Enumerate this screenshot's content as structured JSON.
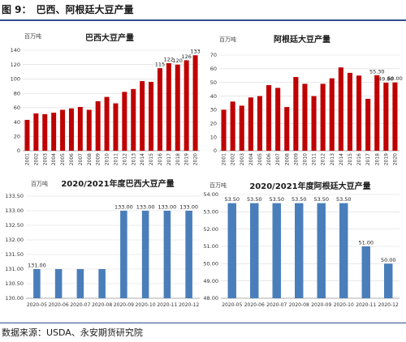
{
  "figure": {
    "label": "图 9：",
    "title": "巴西、阿根廷大豆产量"
  },
  "source": "数据来源：USDA、永安期货研究院",
  "chart_data": [
    {
      "type": "bar",
      "title": "巴西大豆产量",
      "unit": "百万吨",
      "color": "#c00000",
      "categories": [
        "2001",
        "2002",
        "2003",
        "2004",
        "2005",
        "2006",
        "2007",
        "2008",
        "2009",
        "2010",
        "2011",
        "2012",
        "2013",
        "2014",
        "2015",
        "2016",
        "2017",
        "2018",
        "2019",
        "2020"
      ],
      "values": [
        43,
        52,
        51,
        53,
        57,
        59,
        61,
        57,
        69,
        75,
        66,
        82,
        86,
        97,
        96,
        115,
        122,
        120,
        126,
        133
      ],
      "data_labels": {
        "15": "115",
        "16": "122",
        "17": "120",
        "18": "126",
        "19": "133"
      },
      "ylim": [
        0,
        140
      ],
      "yticks": [
        0,
        20,
        40,
        60,
        80,
        100,
        120,
        140
      ],
      "grid": true
    },
    {
      "type": "bar",
      "title": "阿根廷大豆产量",
      "unit": "百万吨",
      "color": "#c00000",
      "categories": [
        "2001",
        "2002",
        "2003",
        "2004",
        "2005",
        "2006",
        "2007",
        "2008",
        "2009",
        "2010",
        "2011",
        "2012",
        "2013",
        "2014",
        "2015",
        "2016",
        "2017",
        "2018",
        "2019",
        "2020"
      ],
      "values": [
        30,
        36,
        33,
        39,
        40,
        48,
        46,
        32,
        54,
        49,
        40,
        49,
        53,
        61,
        57,
        55,
        38,
        55.3,
        49.8,
        50
      ],
      "data_labels": {
        "17": "55.30",
        "18": "49.80",
        "19": "50.00"
      },
      "ylim": [
        0,
        70
      ],
      "yticks": [
        0,
        10,
        20,
        30,
        40,
        50,
        60,
        70
      ],
      "grid": true
    },
    {
      "type": "bar",
      "title": "2020/2021年度巴西大豆产量",
      "unit": "百万吨",
      "color": "#4a7ebb",
      "categories": [
        "2020-05",
        "2020-06",
        "2020-07",
        "2020-08",
        "2020-09",
        "2020-10",
        "2020-11",
        "2020-12"
      ],
      "values": [
        131.0,
        131.0,
        131.0,
        131.0,
        133.0,
        133.0,
        133.0,
        133.0
      ],
      "data_labels": {
        "0": "131.00",
        "4": "133.00",
        "5": "133.00",
        "6": "133.00",
        "7": "133.00"
      },
      "ylim": [
        130.0,
        133.5
      ],
      "yticks": [
        130.0,
        130.5,
        131.0,
        131.5,
        132.0,
        132.5,
        133.0,
        133.5
      ],
      "grid": true
    },
    {
      "type": "bar",
      "title": "2020/2021年度阿根廷大豆产量",
      "unit": "百万吨",
      "color": "#4a7ebb",
      "categories": [
        "2020-05",
        "2020-06",
        "2020-07",
        "2020-08",
        "2020-09",
        "2020-10",
        "2020-11",
        "2020-12"
      ],
      "values": [
        53.5,
        53.5,
        53.5,
        53.5,
        53.5,
        53.5,
        51.0,
        50.0
      ],
      "data_labels": {
        "0": "53.50",
        "1": "53.50",
        "2": "53.50",
        "3": "53.50",
        "4": "53.50",
        "5": "53.50",
        "6": "51.00",
        "7": "50.00"
      },
      "ylim": [
        48.0,
        54.0
      ],
      "yticks": [
        48.0,
        49.0,
        50.0,
        51.0,
        52.0,
        53.0,
        54.0
      ],
      "grid": true
    }
  ]
}
